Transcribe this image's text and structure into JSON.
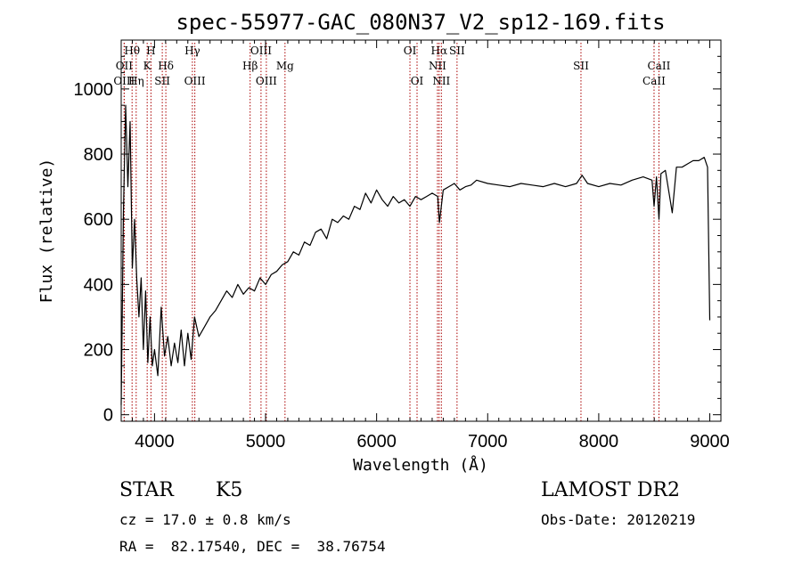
{
  "chart_data": {
    "type": "line",
    "title": "spec-55977-GAC_080N37_V2_sp12-169.fits",
    "xlabel": "Wavelength (Å)",
    "ylabel": "Flux (relative)",
    "xlim": [
      3700,
      9100
    ],
    "ylim": [
      -20,
      1150
    ],
    "x_ticks": [
      "4000",
      "5000",
      "6000",
      "7000",
      "8000",
      "9000"
    ],
    "y_ticks": [
      "0",
      "200",
      "400",
      "600",
      "800",
      "1000"
    ],
    "x_tick_values": [
      4000,
      5000,
      6000,
      7000,
      8000,
      9000
    ],
    "y_tick_values": [
      0,
      200,
      400,
      600,
      800,
      1000
    ],
    "grid": false,
    "line_color": "#000000",
    "marker_color": "#aa0000",
    "series": [
      {
        "x": [
          3700,
          3720,
          3740,
          3760,
          3780,
          3800,
          3820,
          3840,
          3860,
          3880,
          3900,
          3920,
          3940,
          3960,
          3980,
          4000,
          4030,
          4060,
          4090,
          4120,
          4150,
          4180,
          4210,
          4240,
          4270,
          4300,
          4330,
          4360,
          4400,
          4450,
          4500,
          4550,
          4600,
          4650,
          4700,
          4750,
          4800,
          4850,
          4900,
          4950,
          5000,
          5050,
          5100,
          5150,
          5200,
          5250,
          5300,
          5350,
          5400,
          5450,
          5500,
          5550,
          5600,
          5650,
          5700,
          5750,
          5800,
          5850,
          5900,
          5950,
          6000,
          6050,
          6100,
          6150,
          6200,
          6250,
          6300,
          6350,
          6400,
          6450,
          6500,
          6550,
          6565,
          6600,
          6650,
          6700,
          6750,
          6800,
          6850,
          6900,
          7000,
          7100,
          7200,
          7300,
          7400,
          7500,
          7600,
          7700,
          7800,
          7850,
          7900,
          8000,
          8100,
          8200,
          8300,
          8400,
          8480,
          8498,
          8520,
          8542,
          8560,
          8600,
          8662,
          8700,
          8750,
          8800,
          8850,
          8900,
          8950,
          8980,
          9000
        ],
        "y": [
          30,
          620,
          950,
          700,
          900,
          450,
          600,
          420,
          300,
          420,
          200,
          380,
          160,
          300,
          150,
          200,
          120,
          330,
          180,
          240,
          150,
          220,
          160,
          260,
          150,
          250,
          170,
          300,
          240,
          270,
          300,
          320,
          350,
          380,
          360,
          400,
          370,
          390,
          380,
          420,
          400,
          430,
          440,
          460,
          470,
          500,
          490,
          530,
          520,
          560,
          570,
          540,
          600,
          590,
          610,
          600,
          640,
          630,
          680,
          650,
          690,
          660,
          640,
          670,
          650,
          660,
          640,
          670,
          660,
          670,
          680,
          670,
          590,
          690,
          700,
          710,
          690,
          700,
          705,
          720,
          710,
          705,
          700,
          710,
          705,
          700,
          710,
          700,
          710,
          735,
          710,
          700,
          710,
          705,
          720,
          730,
          720,
          640,
          730,
          600,
          740,
          750,
          620,
          760,
          760,
          770,
          780,
          780,
          790,
          760,
          290
        ]
      }
    ]
  },
  "line_markers": [
    {
      "label": "OII",
      "x": 3727,
      "row": 2
    },
    {
      "label": "Hθ",
      "x": 3798,
      "row": 1
    },
    {
      "label": "OIII",
      "x": 3727,
      "row": 3
    },
    {
      "label": "Hη",
      "x": 3835,
      "row": 3
    },
    {
      "label": "H",
      "x": 3968,
      "row": 1
    },
    {
      "label": "K",
      "x": 3934,
      "row": 2
    },
    {
      "label": "Hδ",
      "x": 4102,
      "row": 2
    },
    {
      "label": "SII",
      "x": 4070,
      "row": 3
    },
    {
      "label": "Hγ",
      "x": 4341,
      "row": 1
    },
    {
      "label": "OIII",
      "x": 4363,
      "row": 3
    },
    {
      "label": "Hβ",
      "x": 4861,
      "row": 2
    },
    {
      "label": "OIII",
      "x": 4959,
      "row": 1
    },
    {
      "label": "OIII",
      "x": 5007,
      "row": 3
    },
    {
      "label": "Mg",
      "x": 5175,
      "row": 2
    },
    {
      "label": "OI",
      "x": 6300,
      "row": 1
    },
    {
      "label": "OI",
      "x": 6364,
      "row": 3
    },
    {
      "label": "Hα",
      "x": 6563,
      "row": 1
    },
    {
      "label": "NII",
      "x": 6548,
      "row": 2
    },
    {
      "label": "NII",
      "x": 6583,
      "row": 3
    },
    {
      "label": "SII",
      "x": 6724,
      "row": 1
    },
    {
      "label": "SII",
      "x": 7840,
      "row": 2
    },
    {
      "label": "CaII",
      "x": 8542,
      "row": 2
    },
    {
      "label": "CaII",
      "x": 8498,
      "row": 3
    }
  ],
  "info": {
    "class": "STAR",
    "subclass": "K5",
    "survey": "LAMOST DR2",
    "cz": "cz = 17.0 ± 0.8 km/s",
    "obs_date": "Obs-Date: 20120219",
    "radec": "RA =  82.17540, DEC =  38.76754"
  }
}
